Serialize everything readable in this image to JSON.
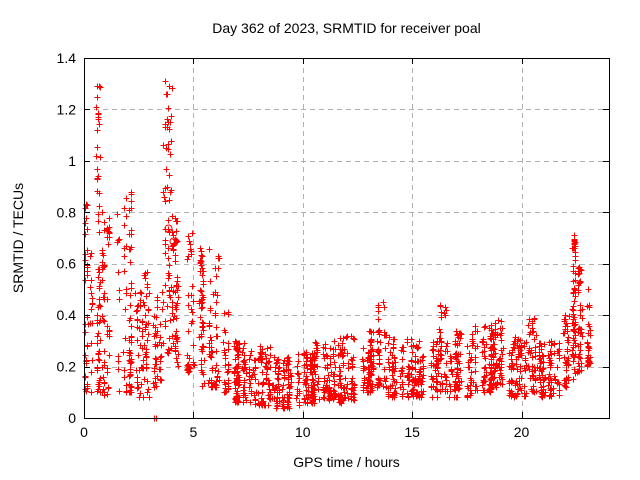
{
  "chart_data": {
    "type": "scatter",
    "title": "Day 362 of 2023, SRMTID for receiver poal",
    "xlabel": "GPS time / hours",
    "ylabel": "SRMTID / TECUs",
    "xlim": [
      0,
      24
    ],
    "ylim": [
      0,
      1.4
    ],
    "xticks": {
      "values": [
        0,
        5,
        10,
        15,
        20
      ],
      "labels": [
        "0",
        "5",
        "10",
        "15",
        "20"
      ]
    },
    "yticks": {
      "values": [
        0,
        0.2,
        0.4,
        0.6,
        0.8,
        1.0,
        1.2,
        1.4
      ],
      "labels": [
        "0",
        "0.2",
        "0.4",
        "0.6",
        "0.8",
        "1",
        "1.2",
        "1.4"
      ]
    },
    "grid": {
      "show": true,
      "color": "#b0b0b0",
      "dash": [
        5,
        4
      ]
    },
    "marker": {
      "shape": "plus",
      "color": "#ff0000",
      "size": 7
    },
    "circle_marker": {
      "r": 3.5
    },
    "axis_color": "#000000",
    "background": "#ffffff",
    "legend": "none",
    "seed": 1362,
    "clusters": [
      {
        "x0": 0.02,
        "x1": 0.35,
        "yMin": 0.08,
        "yMax": 0.88,
        "n": 48,
        "bias": 1.9,
        "cols": 3
      },
      {
        "x0": 0.45,
        "x1": 0.75,
        "yMin": 0.1,
        "yMax": 1.3,
        "n": 55,
        "bias": 1.7,
        "cols": 3
      },
      {
        "x0": 0.8,
        "x1": 1.25,
        "yMin": 0.09,
        "yMax": 0.85,
        "n": 55,
        "bias": 1.8,
        "cols": 4
      },
      {
        "x0": 1.3,
        "x1": 2.15,
        "yMin": 0.1,
        "yMax": 0.92,
        "n": 75,
        "bias": 1.9,
        "cols": 5
      },
      {
        "x0": 2.2,
        "x1": 3.1,
        "yMin": 0.08,
        "yMax": 0.58,
        "n": 70,
        "bias": 1.5,
        "cols": 5
      },
      {
        "x0": 3.1,
        "x1": 3.55,
        "yMin": 0.12,
        "yMax": 0.5,
        "n": 40,
        "bias": 1.4,
        "cols": 3
      },
      {
        "x0": 3.55,
        "x1": 4.0,
        "yMin": 0.25,
        "yMax": 1.3,
        "n": 60,
        "bias": 1.2,
        "cols": 3
      },
      {
        "x0": 4.0,
        "x1": 4.55,
        "yMin": 0.2,
        "yMax": 0.8,
        "n": 55,
        "bias": 1.4,
        "cols": 4
      },
      {
        "x0": 4.55,
        "x1": 5.4,
        "yMin": 0.18,
        "yMax": 0.72,
        "n": 70,
        "bias": 1.5,
        "cols": 5
      },
      {
        "x0": 5.4,
        "x1": 6.3,
        "yMin": 0.12,
        "yMax": 0.66,
        "n": 75,
        "bias": 1.8,
        "cols": 5
      },
      {
        "x0": 6.3,
        "x1": 6.6,
        "yMin": 0.1,
        "yMax": 0.42,
        "n": 30,
        "bias": 1.6,
        "cols": 2
      },
      {
        "x0": 6.6,
        "x1": 7.5,
        "yMin": 0.06,
        "yMax": 0.3,
        "n": 90,
        "bias": 1.3,
        "cols": 6
      },
      {
        "x0": 7.5,
        "x1": 8.5,
        "yMin": 0.05,
        "yMax": 0.28,
        "n": 90,
        "bias": 1.3,
        "cols": 6
      },
      {
        "x0": 8.5,
        "x1": 9.5,
        "yMin": 0.04,
        "yMax": 0.24,
        "n": 90,
        "bias": 1.2,
        "cols": 6
      },
      {
        "x0": 9.5,
        "x1": 10.5,
        "yMin": 0.05,
        "yMax": 0.26,
        "n": 90,
        "bias": 1.2,
        "cols": 6
      },
      {
        "x0": 10.5,
        "x1": 11.5,
        "yMin": 0.07,
        "yMax": 0.3,
        "n": 90,
        "bias": 1.3,
        "cols": 6
      },
      {
        "x0": 11.5,
        "x1": 12.5,
        "yMin": 0.06,
        "yMax": 0.32,
        "n": 90,
        "bias": 1.3,
        "cols": 6
      },
      {
        "x0": 12.5,
        "x1": 13.4,
        "yMin": 0.1,
        "yMax": 0.34,
        "n": 85,
        "bias": 1.3,
        "cols": 6
      },
      {
        "x0": 13.4,
        "x1": 13.9,
        "yMin": 0.12,
        "yMax": 0.46,
        "n": 45,
        "bias": 1.5,
        "cols": 3
      },
      {
        "x0": 13.9,
        "x1": 15.0,
        "yMin": 0.08,
        "yMax": 0.32,
        "n": 95,
        "bias": 1.3,
        "cols": 7
      },
      {
        "x0": 15.0,
        "x1": 16.2,
        "yMin": 0.08,
        "yMax": 0.3,
        "n": 100,
        "bias": 1.3,
        "cols": 7
      },
      {
        "x0": 16.2,
        "x1": 16.7,
        "yMin": 0.1,
        "yMax": 0.44,
        "n": 40,
        "bias": 1.8,
        "cols": 3
      },
      {
        "x0": 16.7,
        "x1": 17.8,
        "yMin": 0.08,
        "yMax": 0.34,
        "n": 95,
        "bias": 1.3,
        "cols": 7
      },
      {
        "x0": 17.8,
        "x1": 18.6,
        "yMin": 0.1,
        "yMax": 0.36,
        "n": 75,
        "bias": 1.3,
        "cols": 5
      },
      {
        "x0": 18.6,
        "x1": 19.4,
        "yMin": 0.12,
        "yMax": 0.39,
        "n": 75,
        "bias": 1.3,
        "cols": 5
      },
      {
        "x0": 19.4,
        "x1": 20.3,
        "yMin": 0.08,
        "yMax": 0.32,
        "n": 80,
        "bias": 1.3,
        "cols": 6
      },
      {
        "x0": 20.3,
        "x1": 20.8,
        "yMin": 0.1,
        "yMax": 0.4,
        "n": 45,
        "bias": 1.6,
        "cols": 3
      },
      {
        "x0": 20.8,
        "x1": 21.9,
        "yMin": 0.08,
        "yMax": 0.3,
        "n": 95,
        "bias": 1.3,
        "cols": 7
      },
      {
        "x0": 21.9,
        "x1": 22.25,
        "yMin": 0.12,
        "yMax": 0.42,
        "n": 40,
        "bias": 1.4,
        "cols": 3
      },
      {
        "x0": 22.25,
        "x1": 22.55,
        "yMin": 0.15,
        "yMax": 0.71,
        "n": 55,
        "bias": 1.0,
        "cols": 2
      },
      {
        "x0": 22.55,
        "x1": 22.85,
        "yMin": 0.18,
        "yMax": 0.6,
        "n": 45,
        "bias": 1.2,
        "cols": 2
      },
      {
        "x0": 22.85,
        "x1": 23.2,
        "yMin": 0.2,
        "yMax": 0.45,
        "n": 30,
        "bias": 1.3,
        "cols": 2
      }
    ],
    "highlight_points": [
      [
        0.58,
        1.29
      ],
      [
        0.6,
        1.25
      ],
      [
        0.57,
        1.21
      ],
      [
        0.62,
        1.17
      ],
      [
        0.6,
        1.12
      ],
      [
        0.56,
        1.02
      ],
      [
        0.59,
        0.97
      ],
      [
        0.61,
        0.93
      ],
      [
        3.72,
        1.31
      ],
      [
        3.75,
        1.26
      ],
      [
        3.7,
        1.13
      ],
      [
        3.77,
        1.05
      ],
      [
        3.73,
        0.97
      ],
      [
        3.79,
        0.9
      ],
      [
        13.68,
        0.45
      ],
      [
        13.72,
        0.43
      ],
      [
        16.5,
        0.43
      ],
      [
        16.48,
        0.4
      ],
      [
        22.38,
        0.71
      ],
      [
        22.41,
        0.69
      ],
      [
        22.36,
        0.66
      ],
      [
        22.43,
        0.63
      ],
      [
        23.05,
        0.5
      ],
      [
        23.1,
        0.44
      ]
    ],
    "circle_points": [
      [
        3.85,
        0.74
      ],
      [
        4.08,
        0.69
      ]
    ],
    "axis_points": [
      [
        3.2,
        0.0
      ],
      [
        3.28,
        0.0
      ]
    ]
  }
}
